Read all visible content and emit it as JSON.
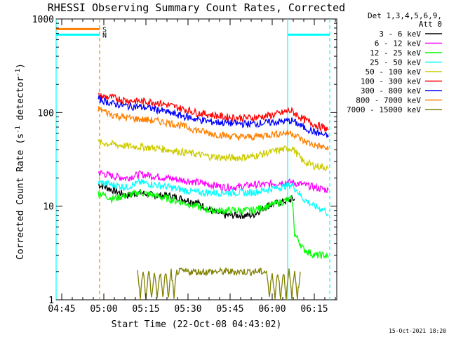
{
  "chart_data": {
    "type": "line",
    "title": "RHESSI Observing Summary Count Rates, Corrected",
    "xlabel": "Start Time (22-Oct-08 04:43:02)",
    "ylabel_parts": [
      "Corrected Count Rate (s",
      "-1",
      " detector",
      "-1",
      ")"
    ],
    "yscale": "log",
    "ylim": [
      1,
      1000
    ],
    "xlim_min": [
      0,
      100
    ],
    "x_unit": "minutes after 04:43:02",
    "x_ticks": [
      {
        "min": 2,
        "label": "04:45"
      },
      {
        "min": 17,
        "label": "05:00"
      },
      {
        "min": 32,
        "label": "05:15"
      },
      {
        "min": 47,
        "label": "05:30"
      },
      {
        "min": 62,
        "label": "05:45"
      },
      {
        "min": 77,
        "label": "06:00"
      },
      {
        "min": 92,
        "label": "06:15"
      }
    ],
    "y_ticks": [
      {
        "value": 1,
        "label": "1"
      },
      {
        "value": 10,
        "label": "10"
      },
      {
        "value": 100,
        "label": "100"
      },
      {
        "value": 1000,
        "label": "1000"
      }
    ],
    "legend_title": [
      "Det 1,3,4,5,6,9,",
      "Att 0"
    ],
    "legend_placement": "right",
    "series": [
      {
        "name": "3 - 6 keV",
        "color": "#000000",
        "x": [
          15,
          20,
          25,
          30,
          35,
          40,
          45,
          50,
          55,
          60,
          65,
          70,
          75,
          80,
          85
        ],
        "values": [
          17,
          15,
          13,
          14,
          13,
          13,
          12,
          11,
          9,
          8,
          8,
          8,
          10,
          11,
          12
        ]
      },
      {
        "name": "6 - 12 keV",
        "color": "#ff00ff",
        "x": [
          15,
          20,
          25,
          30,
          35,
          40,
          45,
          50,
          55,
          60,
          65,
          70,
          75,
          80,
          84,
          88,
          92,
          96,
          97
        ],
        "values": [
          23,
          21,
          20,
          22,
          21,
          20,
          19,
          18,
          17,
          16,
          16,
          17,
          17,
          18,
          18,
          17,
          16,
          15,
          15
        ]
      },
      {
        "name": "12 - 25 keV",
        "color": "#00ff00",
        "x": [
          15,
          20,
          25,
          30,
          35,
          40,
          45,
          50,
          55,
          60,
          65,
          70,
          75,
          80,
          84,
          85,
          88,
          92,
          96,
          97
        ],
        "values": [
          14,
          12,
          13,
          14,
          13,
          12,
          11,
          10,
          9,
          9,
          9,
          9,
          10,
          11,
          12,
          5,
          3.5,
          3,
          3,
          2.8
        ]
      },
      {
        "name": "25 - 50 keV",
        "color": "#00ffff",
        "x": [
          15,
          20,
          25,
          30,
          35,
          40,
          45,
          50,
          55,
          60,
          65,
          70,
          75,
          80,
          84,
          88,
          92,
          96,
          97
        ],
        "values": [
          18,
          17,
          16,
          18,
          17,
          16,
          15,
          14,
          14,
          14,
          14,
          14,
          15,
          16,
          17,
          12,
          10,
          9,
          8
        ]
      },
      {
        "name": "50 - 100 keV",
        "color": "#cccc00",
        "x": [
          15,
          20,
          25,
          30,
          35,
          40,
          45,
          50,
          55,
          60,
          65,
          70,
          75,
          80,
          84,
          88,
          92,
          96,
          97
        ],
        "values": [
          48,
          46,
          44,
          43,
          42,
          40,
          38,
          36,
          34,
          33,
          33,
          34,
          37,
          40,
          42,
          30,
          27,
          26,
          25
        ]
      },
      {
        "name": "100 - 300 keV",
        "color": "#ff0000",
        "x": [
          15,
          20,
          25,
          30,
          35,
          40,
          45,
          50,
          55,
          60,
          65,
          70,
          75,
          80,
          83,
          84,
          88,
          92,
          96,
          97
        ],
        "values": [
          150,
          145,
          135,
          132,
          130,
          120,
          110,
          100,
          95,
          90,
          88,
          88,
          92,
          98,
          105,
          103,
          85,
          75,
          68,
          65
        ]
      },
      {
        "name": "300 - 800 keV",
        "color": "#0000ff",
        "x": [
          15,
          20,
          25,
          30,
          35,
          40,
          45,
          50,
          55,
          60,
          65,
          70,
          75,
          80,
          84,
          88,
          92,
          96,
          97
        ],
        "values": [
          140,
          125,
          118,
          115,
          110,
          100,
          92,
          85,
          80,
          78,
          76,
          76,
          78,
          80,
          82,
          70,
          62,
          57,
          55
        ]
      },
      {
        "name": "800 - 7000 keV",
        "color": "#ff8000",
        "x": [
          15,
          20,
          25,
          30,
          35,
          40,
          45,
          50,
          55,
          60,
          65,
          70,
          75,
          80,
          84,
          88,
          92,
          96,
          97
        ],
        "values": [
          110,
          95,
          88,
          85,
          82,
          78,
          72,
          65,
          60,
          57,
          55,
          55,
          58,
          60,
          61,
          50,
          45,
          42,
          40
        ]
      },
      {
        "name": "7000 - 15000 keV",
        "color": "#808000",
        "x": [
          29,
          30,
          31,
          32,
          33,
          34,
          35,
          36,
          37,
          38,
          39,
          40,
          41,
          42,
          43,
          75,
          76,
          77,
          78,
          79,
          80,
          81,
          82,
          83,
          84,
          85,
          86,
          87
        ],
        "values": [
          2,
          1,
          2,
          1,
          2,
          1,
          2,
          1,
          2,
          1,
          2,
          1,
          2,
          1,
          2,
          2,
          1,
          2,
          1,
          2,
          1,
          2,
          1,
          2,
          1,
          2,
          1,
          2
        ]
      }
    ],
    "annotations": [
      {
        "label": "S",
        "color": "#ff8000",
        "x_range": [
          0,
          15.5
        ],
        "value": 780
      },
      {
        "label": "N",
        "color": "#00ffff",
        "x_range": [
          0,
          15.5
        ],
        "value": 680
      },
      {
        "label": "",
        "color": "#00ffff",
        "x_range": [
          82.5,
          97.5
        ],
        "value": 680
      }
    ],
    "vertical_markers": [
      {
        "min": 0,
        "color": "#00ffff",
        "style": "solid"
      },
      {
        "min": 15.5,
        "color": "#ff8000",
        "style": "dashed"
      },
      {
        "min": 82.5,
        "color": "#00ffff",
        "style": "solid"
      },
      {
        "min": 97.5,
        "color": "#00ffff",
        "style": "dashed"
      }
    ]
  },
  "footer": {
    "timestamp": "15-Oct-2021 18:20"
  }
}
